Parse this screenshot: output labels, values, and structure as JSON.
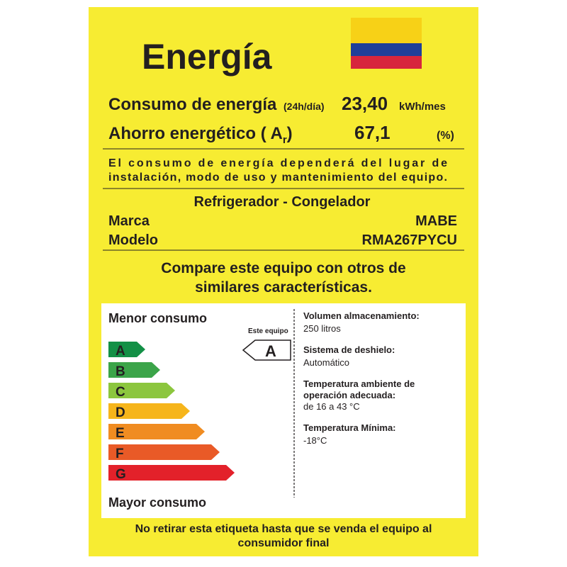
{
  "header": {
    "title": "Energía"
  },
  "consumption": {
    "label": "Consumo de energía",
    "qualifier": "(24h/día)",
    "value": "23,40",
    "unit": "kWh/mes"
  },
  "saving": {
    "label": "Ahorro energético ( A",
    "subscript": "r",
    "close": ")",
    "value": "67,1",
    "unit": "(%)"
  },
  "notice": [
    "El consumo de energía dependerá del lugar de",
    "instalación, modo de uso y mantenimiento del equipo."
  ],
  "product": {
    "type": "Refrigerador - Congelador",
    "brand_label": "Marca",
    "brand": "MABE",
    "model_label": "Modelo",
    "model": "RMA267PYCU"
  },
  "compare": [
    "Compare este equipo con otros de",
    "similares características."
  ],
  "scale": {
    "top_label": "Menor consumo",
    "bottom_label": "Mayor consumo",
    "classes": [
      "A",
      "B",
      "C",
      "D",
      "E",
      "F",
      "G"
    ],
    "this_label": "Este equipo",
    "this_class": "A"
  },
  "specs": [
    {
      "label": "Volumen almacenamiento:",
      "value": "250 litros"
    },
    {
      "label": "Sistema de deshielo:",
      "value": "Automático"
    },
    {
      "label": [
        "Temperatura ambiente de",
        "operación adecuada:"
      ],
      "value": "de 16 a 43 °C"
    },
    {
      "label": "Temperatura Mínima:",
      "value": "-18°C"
    }
  ],
  "footer": [
    "No retirar esta etiqueta hasta que se venda el equipo al",
    "consumidor final"
  ]
}
